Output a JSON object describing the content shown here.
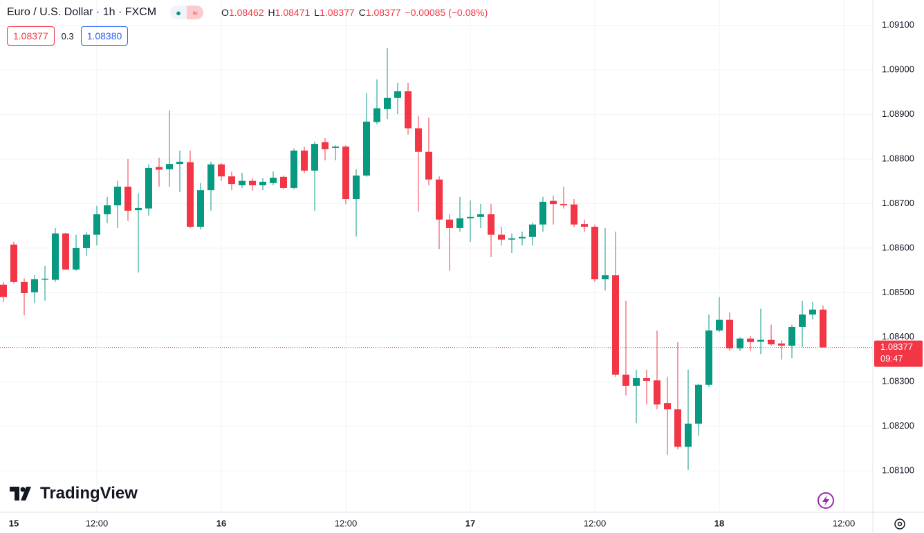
{
  "header": {
    "symbol": "Euro / U.S. Dollar · 1h · FXCM",
    "ohlc": [
      {
        "label": "O",
        "value": "1.08462"
      },
      {
        "label": "H",
        "value": "1.08471"
      },
      {
        "label": "L",
        "value": "1.08377"
      },
      {
        "label": "C",
        "value": "1.08377"
      }
    ],
    "change": "−0.00085 (−0.08%)",
    "bid": "1.08377",
    "spread": "0.3",
    "ask": "1.08380"
  },
  "watermark": "TradingView",
  "chart_data": {
    "type": "candlestick",
    "up_color": "#089981",
    "down_color": "#f23645",
    "grid": true,
    "x": [
      3,
      4,
      5,
      6,
      7,
      8,
      9,
      10,
      11,
      12,
      13,
      14,
      15,
      16,
      17,
      18,
      19,
      20,
      21,
      22,
      23,
      24,
      25,
      26,
      27,
      28,
      29,
      30,
      31,
      32,
      33,
      34,
      35,
      36,
      37,
      38,
      39,
      40,
      41,
      42,
      43,
      44,
      45,
      46,
      47,
      48,
      49,
      50,
      51,
      52,
      53,
      54,
      55,
      56,
      57,
      58,
      59,
      60,
      61,
      62,
      63,
      64,
      65,
      66,
      67,
      68,
      69,
      70,
      71,
      72,
      73,
      74,
      75,
      76,
      77,
      78,
      79,
      80,
      81,
      82
    ],
    "open": [
      1.08518,
      1.08608,
      1.08524,
      1.08501,
      1.08529,
      1.08529,
      1.08633,
      1.08552,
      1.086,
      1.0863,
      1.08676,
      1.08696,
      1.08738,
      1.08685,
      1.08689,
      1.08782,
      1.08777,
      1.08789,
      1.08793,
      1.08648,
      1.0873,
      1.08788,
      1.08761,
      1.08741,
      1.08751,
      1.08741,
      1.08746,
      1.0876,
      1.08735,
      1.08819,
      1.08774,
      1.08838,
      1.08825,
      1.08828,
      1.0871,
      1.08763,
      1.08883,
      1.08912,
      1.08937,
      1.08952,
      1.08869,
      1.08816,
      1.08754,
      1.08664,
      1.08645,
      1.08667,
      1.0867,
      1.08676,
      1.0863,
      1.08619,
      1.08622,
      1.08625,
      1.08653,
      1.08706,
      1.08699,
      1.08698,
      1.08654,
      1.08648,
      1.0853,
      1.08539,
      1.08316,
      1.08291,
      1.08308,
      1.08303,
      1.08252,
      1.08238,
      1.08154,
      1.08206,
      1.08293,
      1.08415,
      1.08439,
      1.08375,
      1.08397,
      1.0839,
      1.08394,
      1.08386,
      1.08381,
      1.08423,
      1.08451,
      1.08462
    ],
    "high": [
      1.08524,
      1.08614,
      1.08532,
      1.08539,
      1.0856,
      1.08645,
      1.08634,
      1.0863,
      1.08636,
      1.08695,
      1.08715,
      1.08751,
      1.088,
      1.08723,
      1.08788,
      1.08803,
      1.08909,
      1.08819,
      1.08819,
      1.08746,
      1.08794,
      1.08791,
      1.08772,
      1.08769,
      1.08757,
      1.08757,
      1.08772,
      1.08763,
      1.08824,
      1.08828,
      1.08839,
      1.08847,
      1.08831,
      1.08831,
      1.08777,
      1.08948,
      1.08979,
      1.09049,
      1.08971,
      1.08971,
      1.08897,
      1.08893,
      1.08761,
      1.08676,
      1.08715,
      1.08707,
      1.08699,
      1.08699,
      1.08648,
      1.08633,
      1.08637,
      1.08657,
      1.08715,
      1.08718,
      1.08738,
      1.0871,
      1.08664,
      1.08653,
      1.08645,
      1.08637,
      1.08482,
      1.08327,
      1.08327,
      1.08415,
      1.08311,
      1.08389,
      1.08327,
      1.08296,
      1.08451,
      1.0849,
      1.08456,
      1.084,
      1.08403,
      1.08464,
      1.08428,
      1.08393,
      1.08428,
      1.08482,
      1.08479,
      1.08471
    ],
    "low": [
      1.08479,
      1.08521,
      1.08449,
      1.08477,
      1.08482,
      1.08524,
      1.08551,
      1.08549,
      1.08583,
      1.08606,
      1.08656,
      1.08645,
      1.08661,
      1.08545,
      1.08673,
      1.08738,
      1.08738,
      1.08726,
      1.08645,
      1.08642,
      1.08684,
      1.08751,
      1.0873,
      1.08735,
      1.08729,
      1.0873,
      1.08741,
      1.08732,
      1.08732,
      1.08769,
      1.08684,
      1.08797,
      1.08797,
      1.08699,
      1.08626,
      1.0876,
      1.08878,
      1.0889,
      1.08901,
      1.08855,
      1.08682,
      1.08741,
      1.08598,
      1.08549,
      1.08637,
      1.08614,
      1.08645,
      1.0858,
      1.08606,
      1.08589,
      1.08606,
      1.08606,
      1.08637,
      1.08653,
      1.08689,
      1.08648,
      1.08637,
      1.08524,
      1.08505,
      1.08311,
      1.08269,
      1.08207,
      1.08249,
      1.08238,
      1.08136,
      1.08148,
      1.08102,
      1.08179,
      1.08288,
      1.08412,
      1.08369,
      1.08369,
      1.08369,
      1.08362,
      1.08381,
      1.0835,
      1.08353,
      1.08378,
      1.0844,
      1.08377
    ],
    "close": [
      1.0849,
      1.08524,
      1.08499,
      1.0853,
      1.08531,
      1.08633,
      1.08552,
      1.086,
      1.0863,
      1.08676,
      1.08696,
      1.08738,
      1.08684,
      1.0869,
      1.0878,
      1.08776,
      1.08789,
      1.08794,
      1.08648,
      1.0873,
      1.08788,
      1.08761,
      1.08744,
      1.08751,
      1.08741,
      1.08749,
      1.08758,
      1.08735,
      1.08819,
      1.08774,
      1.08834,
      1.08822,
      1.08828,
      1.0871,
      1.08763,
      1.08884,
      1.08914,
      1.08937,
      1.08952,
      1.08869,
      1.08816,
      1.08754,
      1.08664,
      1.08645,
      1.08667,
      1.0867,
      1.08676,
      1.0863,
      1.08619,
      1.08622,
      1.08625,
      1.08653,
      1.08704,
      1.08699,
      1.08696,
      1.08653,
      1.08648,
      1.0853,
      1.08539,
      1.08316,
      1.08291,
      1.08308,
      1.08302,
      1.08249,
      1.08238,
      1.08154,
      1.08206,
      1.08293,
      1.08415,
      1.08439,
      1.08375,
      1.08397,
      1.08389,
      1.08394,
      1.08384,
      1.08381,
      1.08423,
      1.08451,
      1.08462,
      1.08377
    ],
    "xlim": [
      2.667,
      86.8
    ],
    "xticks": [
      {
        "value": 0,
        "label": "15"
      },
      {
        "value": 12,
        "label": "12:00"
      },
      {
        "value": 24,
        "label": "16"
      },
      {
        "value": 36,
        "label": "12:00"
      },
      {
        "value": 48,
        "label": "17"
      },
      {
        "value": 60,
        "label": "12:00"
      },
      {
        "value": 72,
        "label": "18"
      },
      {
        "value": 84,
        "label": "12:00"
      }
    ],
    "ylim": [
      1.08007,
      1.09157
    ],
    "yticks": [
      {
        "value": 1.081,
        "label": "1.08100"
      },
      {
        "value": 1.082,
        "label": "1.08200"
      },
      {
        "value": 1.083,
        "label": "1.08300"
      },
      {
        "value": 1.084,
        "label": "1.08400"
      },
      {
        "value": 1.085,
        "label": "1.08500"
      },
      {
        "value": 1.086,
        "label": "1.08600"
      },
      {
        "value": 1.087,
        "label": "1.08700"
      },
      {
        "value": 1.088,
        "label": "1.08800"
      },
      {
        "value": 1.089,
        "label": "1.08900"
      },
      {
        "value": 1.09,
        "label": "1.09000"
      },
      {
        "value": 1.091,
        "label": "1.09100"
      }
    ],
    "current_price": 1.08377,
    "countdown": "09:47"
  }
}
